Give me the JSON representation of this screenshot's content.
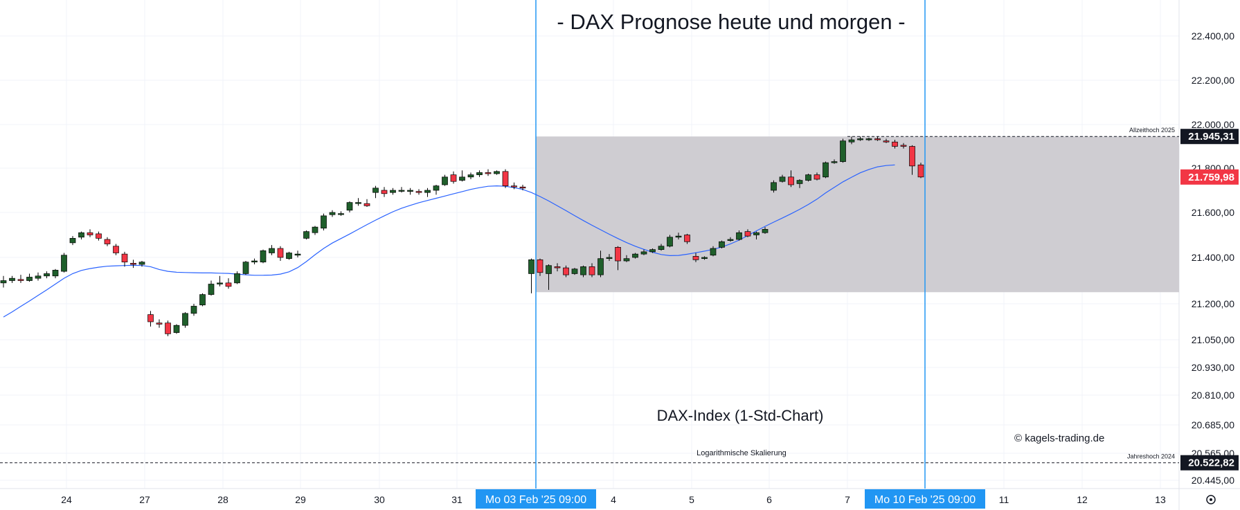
{
  "chart_data": {
    "type": "candlestick",
    "title": "- DAX Prognose heute und morgen -",
    "subtitle": "DAX-Index (1-Std-Chart)",
    "credit": "© kagels-trading.de",
    "scale_note": "Logarithmische Skalierung",
    "log_scale": true,
    "grid": true,
    "y_ticks": [
      {
        "label": "22.400,00",
        "value": 22400
      },
      {
        "label": "22.200,00",
        "value": 22200
      },
      {
        "label": "22.000,00",
        "value": 22000
      },
      {
        "label": "21.800,00",
        "value": 21800
      },
      {
        "label": "21.600,00",
        "value": 21600
      },
      {
        "label": "21.400,00",
        "value": 21400
      },
      {
        "label": "21.200,00",
        "value": 21200
      },
      {
        "label": "21.050,00",
        "value": 21050
      },
      {
        "label": "20.930,00",
        "value": 20930
      },
      {
        "label": "20.810,00",
        "value": 20810
      },
      {
        "label": "20.685,00",
        "value": 20685
      },
      {
        "label": "20.565,00",
        "value": 20565
      },
      {
        "label": "20.445,00",
        "value": 20445
      }
    ],
    "x_ticks": [
      "24",
      "27",
      "28",
      "29",
      "30",
      "31",
      "4",
      "5",
      "6",
      "7",
      "11",
      "12",
      "13"
    ],
    "x_range_markers": [
      {
        "label": "Mo 03 Feb '25   09:00"
      },
      {
        "label": "Mo 10 Feb '25   09:00"
      }
    ],
    "range_box": {
      "low": 21250,
      "high": 21945.31
    },
    "horizontal_levels": [
      {
        "name": "Allzeithoch 2025",
        "value": 21945.31,
        "label": "21.945,31",
        "color": "#131722"
      },
      {
        "name": "Jahreshoch 2024",
        "value": 20522.82,
        "label": "20.522,82",
        "color": "#131722"
      }
    ],
    "last_price": {
      "value": 21759.98,
      "label": "21.759,98",
      "color": "#f23645"
    },
    "candles": [
      {
        "o": 21290,
        "h": 21320,
        "c": 21300,
        "l": 21270
      },
      {
        "o": 21300,
        "h": 21320,
        "c": 21310,
        "l": 21290
      },
      {
        "o": 21305,
        "h": 21325,
        "c": 21300,
        "l": 21290
      },
      {
        "o": 21300,
        "h": 21330,
        "c": 21315,
        "l": 21295
      },
      {
        "o": 21310,
        "h": 21335,
        "c": 21320,
        "l": 21300
      },
      {
        "o": 21320,
        "h": 21340,
        "c": 21330,
        "l": 21310
      },
      {
        "o": 21320,
        "h": 21350,
        "c": 21345,
        "l": 21310
      },
      {
        "o": 21340,
        "h": 21420,
        "c": 21410,
        "l": 21335
      },
      {
        "o": 21465,
        "h": 21495,
        "c": 21485,
        "l": 21455
      },
      {
        "o": 21490,
        "h": 21515,
        "c": 21510,
        "l": 21480
      },
      {
        "o": 21510,
        "h": 21525,
        "c": 21500,
        "l": 21490
      },
      {
        "o": 21505,
        "h": 21515,
        "c": 21485,
        "l": 21475
      },
      {
        "o": 21480,
        "h": 21490,
        "c": 21460,
        "l": 21450
      },
      {
        "o": 21450,
        "h": 21460,
        "c": 21420,
        "l": 21410
      },
      {
        "o": 21415,
        "h": 21425,
        "c": 21380,
        "l": 21360
      },
      {
        "o": 21375,
        "h": 21390,
        "c": 21370,
        "l": 21355
      },
      {
        "o": 21370,
        "h": 21385,
        "c": 21380,
        "l": 21360
      },
      {
        "o": 21155,
        "h": 21170,
        "c": 21125,
        "l": 21105
      },
      {
        "o": 21120,
        "h": 21135,
        "c": 21115,
        "l": 21100
      },
      {
        "o": 21120,
        "h": 21130,
        "c": 21075,
        "l": 21065
      },
      {
        "o": 21080,
        "h": 21115,
        "c": 21110,
        "l": 21075
      },
      {
        "o": 21110,
        "h": 21165,
        "c": 21160,
        "l": 21100
      },
      {
        "o": 21160,
        "h": 21200,
        "c": 21190,
        "l": 21150
      },
      {
        "o": 21195,
        "h": 21245,
        "c": 21240,
        "l": 21190
      },
      {
        "o": 21240,
        "h": 21300,
        "c": 21285,
        "l": 21235
      },
      {
        "o": 21285,
        "h": 21320,
        "c": 21290,
        "l": 21275
      },
      {
        "o": 21290,
        "h": 21310,
        "c": 21275,
        "l": 21265
      },
      {
        "o": 21290,
        "h": 21340,
        "c": 21330,
        "l": 21285
      },
      {
        "o": 21330,
        "h": 21385,
        "c": 21380,
        "l": 21325
      },
      {
        "o": 21380,
        "h": 21395,
        "c": 21385,
        "l": 21370
      },
      {
        "o": 21380,
        "h": 21435,
        "c": 21430,
        "l": 21375
      },
      {
        "o": 21420,
        "h": 21455,
        "c": 21440,
        "l": 21410
      },
      {
        "o": 21440,
        "h": 21450,
        "c": 21400,
        "l": 21385
      },
      {
        "o": 21395,
        "h": 21425,
        "c": 21420,
        "l": 21390
      },
      {
        "o": 21410,
        "h": 21430,
        "c": 21415,
        "l": 21400
      },
      {
        "o": 21485,
        "h": 21520,
        "c": 21515,
        "l": 21480
      },
      {
        "o": 21510,
        "h": 21540,
        "c": 21535,
        "l": 21500
      },
      {
        "o": 21530,
        "h": 21595,
        "c": 21585,
        "l": 21520
      },
      {
        "o": 21590,
        "h": 21610,
        "c": 21600,
        "l": 21580
      },
      {
        "o": 21595,
        "h": 21605,
        "c": 21595,
        "l": 21585
      },
      {
        "o": 21610,
        "h": 21650,
        "c": 21645,
        "l": 21600
      },
      {
        "o": 21640,
        "h": 21665,
        "c": 21645,
        "l": 21630
      },
      {
        "o": 21640,
        "h": 21660,
        "c": 21630,
        "l": 21625
      },
      {
        "o": 21690,
        "h": 21720,
        "c": 21710,
        "l": 21665
      },
      {
        "o": 21700,
        "h": 21715,
        "c": 21685,
        "l": 21670
      },
      {
        "o": 21690,
        "h": 21710,
        "c": 21700,
        "l": 21680
      },
      {
        "o": 21700,
        "h": 21715,
        "c": 21700,
        "l": 21690
      },
      {
        "o": 21695,
        "h": 21710,
        "c": 21700,
        "l": 21680
      },
      {
        "o": 21695,
        "h": 21705,
        "c": 21690,
        "l": 21680
      },
      {
        "o": 21690,
        "h": 21710,
        "c": 21700,
        "l": 21670
      },
      {
        "o": 21700,
        "h": 21725,
        "c": 21720,
        "l": 21680
      },
      {
        "o": 21725,
        "h": 21770,
        "c": 21760,
        "l": 21720
      },
      {
        "o": 21770,
        "h": 21785,
        "c": 21740,
        "l": 21730
      },
      {
        "o": 21745,
        "h": 21790,
        "c": 21760,
        "l": 21740
      },
      {
        "o": 21760,
        "h": 21780,
        "c": 21770,
        "l": 21750
      },
      {
        "o": 21770,
        "h": 21790,
        "c": 21780,
        "l": 21760
      },
      {
        "o": 21780,
        "h": 21795,
        "c": 21775,
        "l": 21765
      },
      {
        "o": 21775,
        "h": 21790,
        "c": 21785,
        "l": 21770
      },
      {
        "o": 21785,
        "h": 21795,
        "c": 21720,
        "l": 21710
      },
      {
        "o": 21720,
        "h": 21735,
        "c": 21715,
        "l": 21705
      },
      {
        "o": 21715,
        "h": 21725,
        "c": 21710,
        "l": 21700
      },
      {
        "o": 21330,
        "h": 21395,
        "c": 21390,
        "l": 21245
      },
      {
        "o": 21390,
        "h": 21395,
        "c": 21335,
        "l": 21320
      },
      {
        "o": 21330,
        "h": 21370,
        "c": 21365,
        "l": 21260
      },
      {
        "o": 21360,
        "h": 21375,
        "c": 21355,
        "l": 21340
      },
      {
        "o": 21355,
        "h": 21365,
        "c": 21325,
        "l": 21315
      },
      {
        "o": 21330,
        "h": 21355,
        "c": 21350,
        "l": 21325
      },
      {
        "o": 21325,
        "h": 21365,
        "c": 21360,
        "l": 21315
      },
      {
        "o": 21360,
        "h": 21375,
        "c": 21325,
        "l": 21315
      },
      {
        "o": 21325,
        "h": 21430,
        "c": 21395,
        "l": 21315
      },
      {
        "o": 21395,
        "h": 21415,
        "c": 21400,
        "l": 21385
      },
      {
        "o": 21445,
        "h": 21450,
        "c": 21385,
        "l": 21345
      },
      {
        "o": 21385,
        "h": 21410,
        "c": 21395,
        "l": 21380
      },
      {
        "o": 21400,
        "h": 21420,
        "c": 21415,
        "l": 21395
      },
      {
        "o": 21415,
        "h": 21435,
        "c": 21425,
        "l": 21410
      },
      {
        "o": 21425,
        "h": 21440,
        "c": 21435,
        "l": 21420
      },
      {
        "o": 21435,
        "h": 21460,
        "c": 21450,
        "l": 21430
      },
      {
        "o": 21450,
        "h": 21500,
        "c": 21490,
        "l": 21445
      },
      {
        "o": 21490,
        "h": 21510,
        "c": 21495,
        "l": 21480
      },
      {
        "o": 21500,
        "h": 21505,
        "c": 21470,
        "l": 21460
      },
      {
        "o": 21405,
        "h": 21420,
        "c": 21390,
        "l": 21380
      },
      {
        "o": 21395,
        "h": 21405,
        "c": 21400,
        "l": 21390
      },
      {
        "o": 21410,
        "h": 21450,
        "c": 21440,
        "l": 21405
      },
      {
        "o": 21445,
        "h": 21475,
        "c": 21470,
        "l": 21440
      },
      {
        "o": 21475,
        "h": 21490,
        "c": 21480,
        "l": 21470
      },
      {
        "o": 21480,
        "h": 21520,
        "c": 21510,
        "l": 21475
      },
      {
        "o": 21515,
        "h": 21525,
        "c": 21495,
        "l": 21490
      },
      {
        "o": 21500,
        "h": 21515,
        "c": 21510,
        "l": 21480
      },
      {
        "o": 21510,
        "h": 21535,
        "c": 21525,
        "l": 21505
      },
      {
        "o": 21700,
        "h": 21745,
        "c": 21735,
        "l": 21690
      },
      {
        "o": 21740,
        "h": 21770,
        "c": 21760,
        "l": 21735
      },
      {
        "o": 21760,
        "h": 21790,
        "c": 21725,
        "l": 21715
      },
      {
        "o": 21730,
        "h": 21750,
        "c": 21745,
        "l": 21710
      },
      {
        "o": 21745,
        "h": 21775,
        "c": 21770,
        "l": 21740
      },
      {
        "o": 21770,
        "h": 21780,
        "c": 21750,
        "l": 21745
      },
      {
        "o": 21760,
        "h": 21830,
        "c": 21825,
        "l": 21755
      },
      {
        "o": 21825,
        "h": 21840,
        "c": 21830,
        "l": 21820
      },
      {
        "o": 21830,
        "h": 21935,
        "c": 21925,
        "l": 21825
      },
      {
        "o": 21920,
        "h": 21945,
        "c": 21930,
        "l": 21910
      },
      {
        "o": 21930,
        "h": 21945,
        "c": 21935,
        "l": 21925
      },
      {
        "o": 21930,
        "h": 21940,
        "c": 21935,
        "l": 21925
      },
      {
        "o": 21935,
        "h": 21945,
        "c": 21930,
        "l": 21925
      },
      {
        "o": 21925,
        "h": 21935,
        "c": 21920,
        "l": 21915
      },
      {
        "o": 21920,
        "h": 21930,
        "c": 21900,
        "l": 21890
      },
      {
        "o": 21905,
        "h": 21915,
        "c": 21900,
        "l": 21890
      },
      {
        "o": 21900,
        "h": 21905,
        "c": 21810,
        "l": 21770
      },
      {
        "o": 21815,
        "h": 21825,
        "c": 21760,
        "l": 21755
      }
    ],
    "moving_average": {
      "color": "#2962ff",
      "values": [
        21145,
        21166,
        21189,
        21212,
        21236,
        21260,
        21285,
        21310,
        21330,
        21344,
        21352,
        21358,
        21362,
        21364,
        21365,
        21366,
        21365,
        21360,
        21348,
        21340,
        21336,
        21335,
        21334,
        21333,
        21333,
        21332,
        21331,
        21328,
        21325,
        21323,
        21323,
        21324,
        21328,
        21338,
        21356,
        21382,
        21412,
        21440,
        21464,
        21484,
        21504,
        21525,
        21546,
        21566,
        21585,
        21603,
        21619,
        21632,
        21644,
        21654,
        21664,
        21674,
        21684,
        21694,
        21704,
        21712,
        21718,
        21720,
        21718,
        21712,
        21704,
        21690,
        21672,
        21652,
        21630,
        21608,
        21586,
        21564,
        21543,
        21523,
        21503,
        21484,
        21466,
        21450,
        21436,
        21423,
        21413,
        21408,
        21409,
        21414,
        21421,
        21428,
        21436,
        21446,
        21460,
        21477,
        21497,
        21518,
        21538,
        21557,
        21575,
        21594,
        21614,
        21636,
        21660,
        21688,
        21713,
        21738,
        21759,
        21779,
        21794,
        21806,
        21812,
        21815
      ]
    },
    "colors": {
      "up": "#1f5f2b",
      "down": "#f23645",
      "range": "#cfcdd2",
      "marker": "#2196f3"
    }
  }
}
